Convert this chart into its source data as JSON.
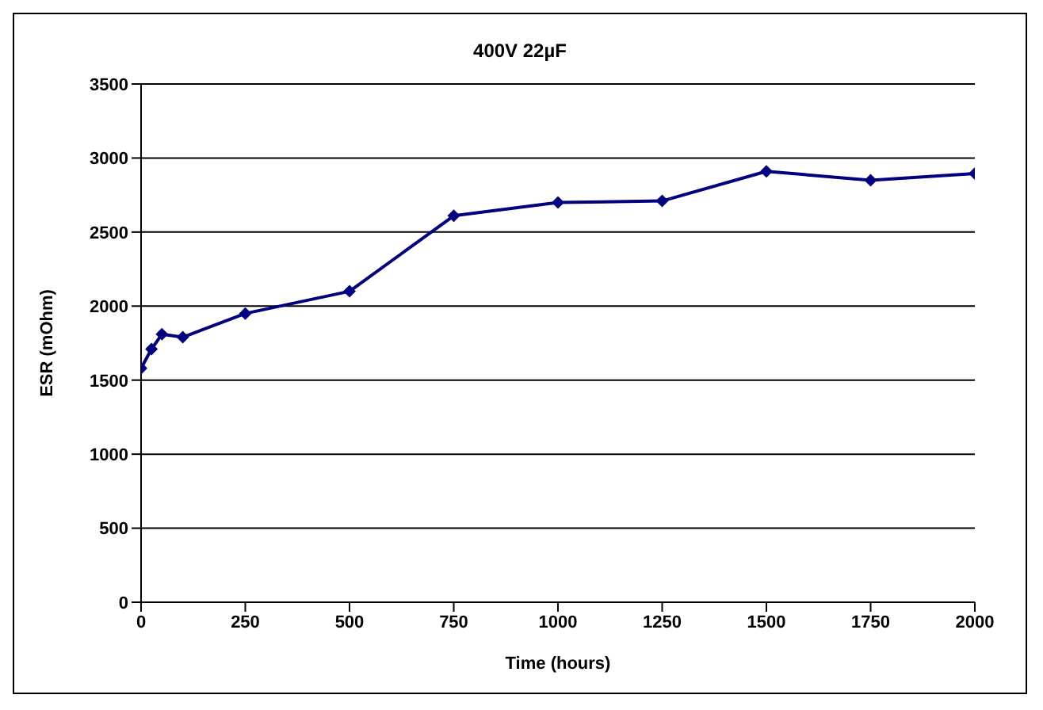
{
  "chart_data": {
    "type": "line",
    "title": "400V 22µF",
    "xlabel": "Time (hours)",
    "ylabel": "ESR (mOhm)",
    "x": [
      0,
      25,
      50,
      100,
      250,
      500,
      750,
      1000,
      1250,
      1500,
      1750,
      2000
    ],
    "series": [
      {
        "color": "#000080",
        "values": [
          1580,
          1710,
          1810,
          1790,
          1950,
          2100,
          2610,
          2700,
          2710,
          2910,
          2850,
          2895
        ]
      }
    ],
    "xlim": [
      0,
      2000
    ],
    "xticks": [
      0,
      250,
      500,
      750,
      1000,
      1250,
      1500,
      1750,
      2000
    ],
    "ylim": [
      0,
      3500
    ],
    "yticks": [
      0,
      500,
      1000,
      1500,
      2000,
      2500,
      3000,
      3500
    ],
    "grid": "y",
    "legend": false,
    "marker": "diamond",
    "line_style": "solid"
  }
}
